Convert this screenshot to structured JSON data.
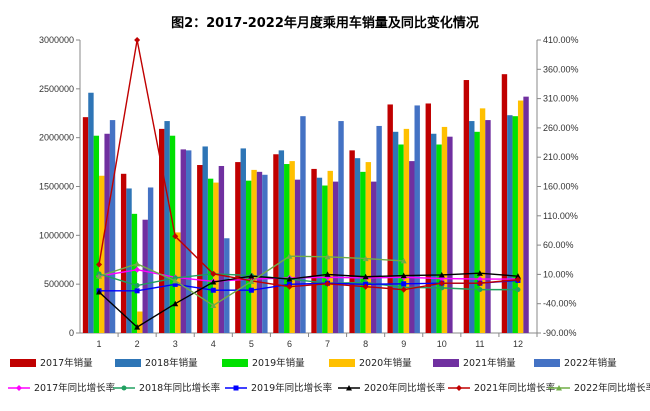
{
  "chart_data": {
    "type": "bar+line",
    "title": "图2：2017-2022年月度乘用车销量及同比变化情况",
    "categories": [
      "1",
      "2",
      "3",
      "4",
      "5",
      "6",
      "7",
      "8",
      "9",
      "10",
      "11",
      "12"
    ],
    "y_left": {
      "min": 0,
      "max": 3000000,
      "step": 500000,
      "ticks": [
        "0",
        "500000",
        "1000000",
        "1500000",
        "2000000",
        "2500000",
        "3000000"
      ]
    },
    "y_right": {
      "min": -90,
      "max": 410,
      "step": 50,
      "ticks": [
        "-90.00%",
        "-40.00%",
        "10.00%",
        "60.00%",
        "110.00%",
        "160.00%",
        "210.00%",
        "260.00%",
        "310.00%",
        "360.00%",
        "410.00%"
      ]
    },
    "bar_series": [
      {
        "name": "2017年销量",
        "color": "#c00000",
        "values": [
          2210000,
          1630000,
          2090000,
          1720000,
          1750000,
          1830000,
          1680000,
          1870000,
          2340000,
          2350000,
          2590000,
          2650000
        ]
      },
      {
        "name": "2018年销量",
        "color": "#2e75b6",
        "values": [
          2460000,
          1480000,
          2170000,
          1910000,
          1890000,
          1870000,
          1590000,
          1790000,
          2060000,
          2040000,
          2170000,
          2230000
        ]
      },
      {
        "name": "2019年销量",
        "color": "#00e000",
        "values": [
          2020000,
          1220000,
          2020000,
          1580000,
          1560000,
          1730000,
          1510000,
          1650000,
          1930000,
          1930000,
          2060000,
          2220000
        ]
      },
      {
        "name": "2020年销量",
        "color": "#ffc000",
        "values": [
          1610000,
          220000,
          1030000,
          1540000,
          1670000,
          1760000,
          1660000,
          1750000,
          2090000,
          2110000,
          2300000,
          2380000
        ]
      },
      {
        "name": "2021年销量",
        "color": "#7030a0",
        "values": [
          2040000,
          1160000,
          1880000,
          1710000,
          1650000,
          1570000,
          1550000,
          1550000,
          1760000,
          2010000,
          2180000,
          2420000
        ]
      },
      {
        "name": "2022年销量",
        "color": "#4472c4",
        "values": [
          2180000,
          1490000,
          1870000,
          970000,
          1620000,
          2220000,
          2170000,
          2120000,
          2330000,
          null,
          null,
          null
        ]
      }
    ],
    "line_series": [
      {
        "name": "2017年同比增长率",
        "color": "#ff00ff",
        "marker": "diamond",
        "values": [
          7,
          18,
          5,
          -2,
          2,
          4,
          5,
          4,
          5,
          3,
          2,
          2
        ]
      },
      {
        "name": "2018年同比增长率",
        "color": "#20a060",
        "marker": "circle",
        "values": [
          11,
          -9,
          4,
          11,
          8,
          2,
          -5,
          -4,
          -12,
          -13,
          -16,
          -16
        ]
      },
      {
        "name": "2019年同比增长率",
        "color": "#0000ff",
        "marker": "square",
        "values": [
          -18,
          -18,
          -7,
          -17,
          -17,
          -7,
          -5,
          -7,
          -6,
          -5,
          -5,
          -0.3
        ]
      },
      {
        "name": "2020年同比增长率",
        "color": "#000000",
        "marker": "triangle",
        "values": [
          -20,
          -80,
          -40,
          -3,
          7,
          2,
          10,
          6,
          8,
          9,
          12,
          7
        ]
      },
      {
        "name": "2021年同比增长率",
        "color": "#c00000",
        "marker": "diamond",
        "values": [
          27,
          410,
          75,
          11,
          -1,
          -11,
          -6,
          -11,
          -16,
          -5,
          -5,
          1
        ]
      },
      {
        "name": "2022年同比增长率",
        "color": "#70ad47",
        "marker": "triangle",
        "values": [
          7,
          28,
          -1,
          -43,
          -2,
          41,
          40,
          37,
          33,
          null,
          null,
          null
        ]
      }
    ],
    "legend_position": "bottom",
    "grid": false
  }
}
